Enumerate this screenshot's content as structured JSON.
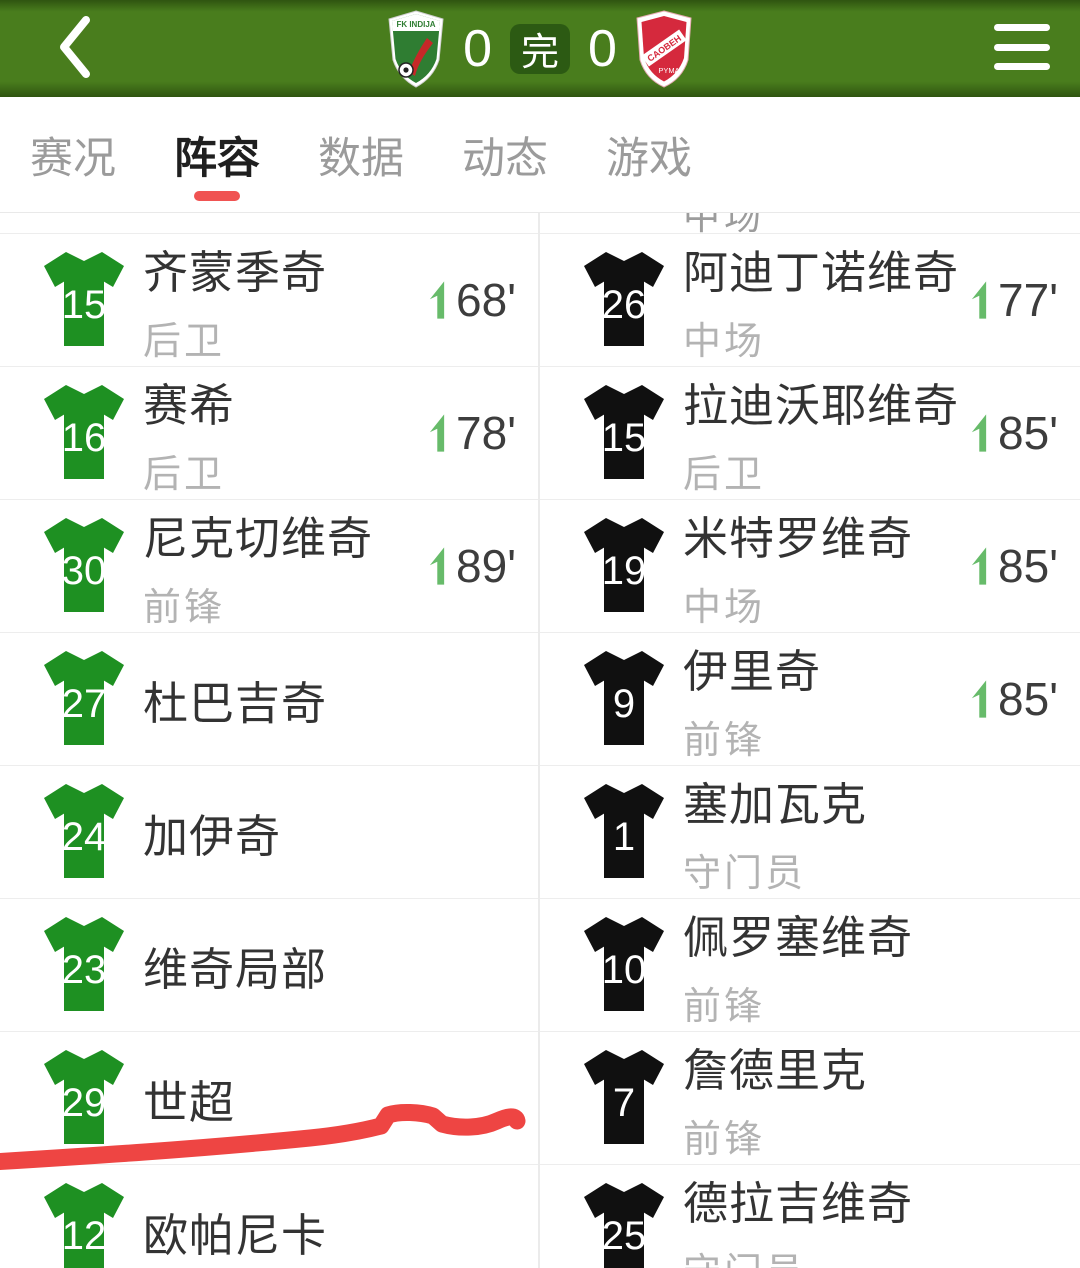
{
  "header": {
    "home_score": "0",
    "away_score": "0",
    "status_label": "完",
    "home_crest_text": "FK INDIJA",
    "away_crest_band": "CAOBEH",
    "away_crest_bottom": "PYMA"
  },
  "tabs": [
    {
      "id": "tab-overview",
      "label": "赛况",
      "active": false
    },
    {
      "id": "tab-lineup",
      "label": "阵容",
      "active": true
    },
    {
      "id": "tab-stats",
      "label": "数据",
      "active": false
    },
    {
      "id": "tab-feed",
      "label": "动态",
      "active": false
    },
    {
      "id": "tab-games",
      "label": "游戏",
      "active": false
    }
  ],
  "lineup": {
    "partial_top_text": "中场",
    "home_players": [
      {
        "number": "15",
        "name": "齐蒙季奇",
        "position": "后卫",
        "sub_on": "68'"
      },
      {
        "number": "16",
        "name": "赛希",
        "position": "后卫",
        "sub_on": "78'"
      },
      {
        "number": "30",
        "name": "尼克切维奇",
        "position": "前锋",
        "sub_on": "89'"
      },
      {
        "number": "27",
        "name": "杜巴吉奇",
        "position": "",
        "sub_on": ""
      },
      {
        "number": "24",
        "name": "加伊奇",
        "position": "",
        "sub_on": ""
      },
      {
        "number": "23",
        "name": "维奇局部",
        "position": "",
        "sub_on": ""
      },
      {
        "number": "29",
        "name": "世超",
        "position": "",
        "sub_on": ""
      },
      {
        "number": "12",
        "name": "欧帕尼卡",
        "position": "",
        "sub_on": ""
      }
    ],
    "away_players": [
      {
        "number": "26",
        "name": "阿迪丁诺维奇",
        "position": "中场",
        "sub_on": "77'"
      },
      {
        "number": "15",
        "name": "拉迪沃耶维奇",
        "position": "后卫",
        "sub_on": "85'"
      },
      {
        "number": "19",
        "name": "米特罗维奇",
        "position": "中场",
        "sub_on": "85'"
      },
      {
        "number": "9",
        "name": "伊里奇",
        "position": "前锋",
        "sub_on": "85'"
      },
      {
        "number": "1",
        "name": "塞加瓦克",
        "position": "守门员",
        "sub_on": ""
      },
      {
        "number": "10",
        "name": "佩罗塞维奇",
        "position": "前锋",
        "sub_on": ""
      },
      {
        "number": "7",
        "name": "詹德里克",
        "position": "前锋",
        "sub_on": ""
      },
      {
        "number": "25",
        "name": "德拉吉维奇",
        "position": "守门员",
        "sub_on": ""
      }
    ]
  },
  "colors": {
    "header_green": "#497d1d",
    "header_green_dark": "#2f5410",
    "badge_green": "#2c5a13",
    "accent_red": "#f05352",
    "tab_inactive": "#9b9b9b",
    "tab_active": "#1f1f1f",
    "jersey_home": "#1e9022",
    "jersey_away": "#101010",
    "sub_green": "#67bb6a",
    "name_color": "#333333",
    "position_color": "#b3b3b3",
    "time_color": "#3d3d3d",
    "divider": "#ededed",
    "marker_red": "#ee4543"
  }
}
